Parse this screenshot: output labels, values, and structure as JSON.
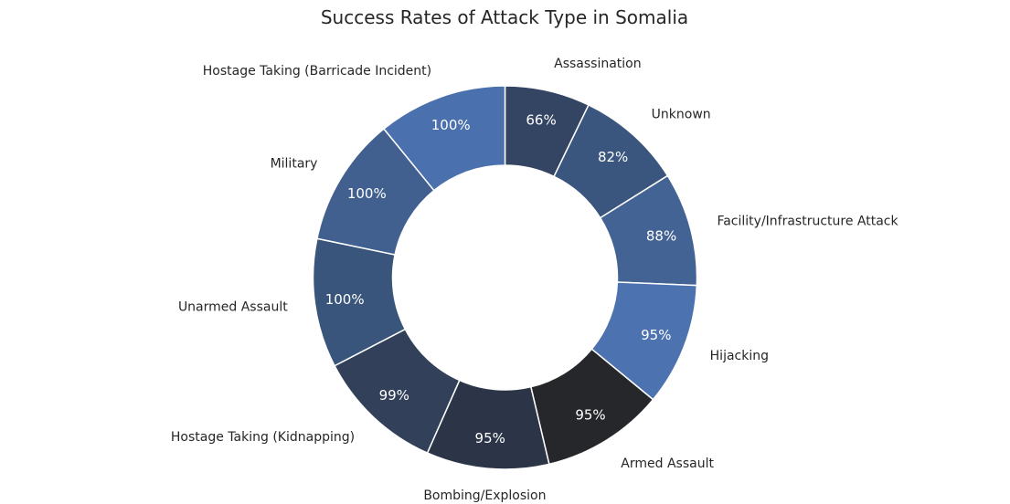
{
  "chart_data": {
    "type": "pie",
    "variant": "donut",
    "title": "Success Rates of Attack Type in Somalia",
    "slices": [
      {
        "label": "Assassination",
        "value": 66,
        "pct_label": "66%",
        "color": "#344563"
      },
      {
        "label": "Unknown",
        "value": 82,
        "pct_label": "82%",
        "color": "#3b567e"
      },
      {
        "label": "Facility/Infrastructure Attack",
        "value": 88,
        "pct_label": "88%",
        "color": "#436394"
      },
      {
        "label": "Hijacking",
        "value": 95,
        "pct_label": "95%",
        "color": "#4c72b0"
      },
      {
        "label": "Armed Assault",
        "value": 95,
        "pct_label": "95%",
        "color": "#26272b"
      },
      {
        "label": "Bombing/Explosion",
        "value": 95,
        "pct_label": "95%",
        "color": "#2c3548"
      },
      {
        "label": "Hostage Taking (Kidnapping)",
        "value": 99,
        "pct_label": "99%",
        "color": "#324159"
      },
      {
        "label": "Unarmed Assault",
        "value": 100,
        "pct_label": "100%",
        "color": "#3a557c"
      },
      {
        "label": "Military",
        "value": 100,
        "pct_label": "100%",
        "color": "#415f8f"
      },
      {
        "label": "Hostage Taking (Barricade Incident)",
        "value": 100,
        "pct_label": "100%",
        "color": "#4a70ad"
      }
    ],
    "start": "top",
    "direction": "clockwise",
    "legend": "none"
  }
}
